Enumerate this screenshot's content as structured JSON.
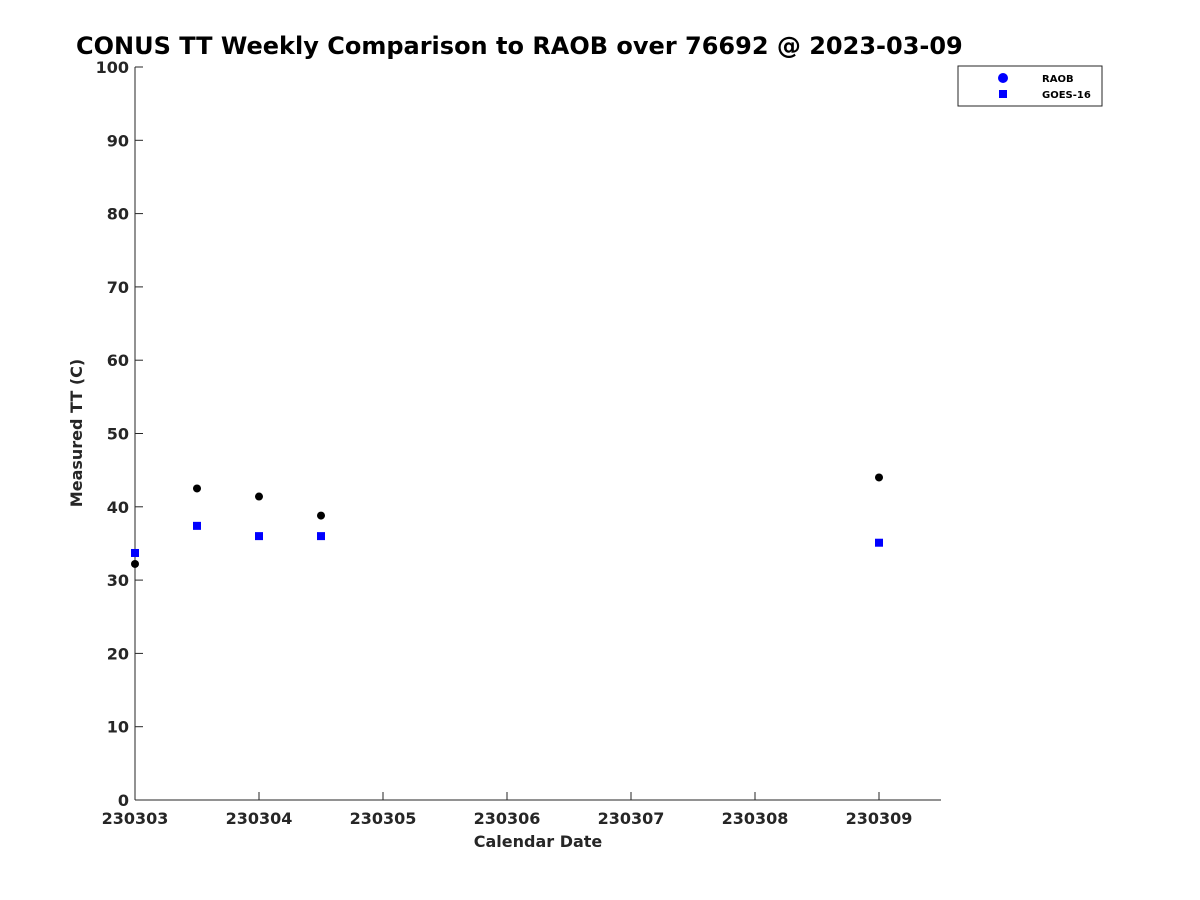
{
  "chart_data": {
    "type": "scatter",
    "title": "CONUS TT Weekly Comparison to RAOB over 76692 @ 2023-03-09",
    "xlabel": "Calendar Date",
    "ylabel": "Measured TT (C)",
    "x_tick_labels": [
      "230303",
      "230304",
      "230305",
      "230306",
      "230307",
      "230308",
      "230309"
    ],
    "y_ticks": [
      0,
      10,
      20,
      30,
      40,
      50,
      60,
      70,
      80,
      90,
      100
    ],
    "xlim": [
      "2023-03-03",
      "2023-03-09 12:00"
    ],
    "ylim": [
      0,
      100
    ],
    "grid": false,
    "legend_position": "top-right",
    "series": [
      {
        "name": "RAOB",
        "marker": "circle",
        "color": "#000000",
        "legend_color": "#0000ff",
        "points": [
          {
            "x": "2023-03-03 00:00",
            "y": 32.2
          },
          {
            "x": "2023-03-03 12:00",
            "y": 42.5
          },
          {
            "x": "2023-03-04 00:00",
            "y": 41.4
          },
          {
            "x": "2023-03-04 12:00",
            "y": 38.8
          },
          {
            "x": "2023-03-09 00:00",
            "y": 44.0
          }
        ]
      },
      {
        "name": "GOES-16",
        "marker": "square",
        "color": "#0000ff",
        "legend_color": "#0000ff",
        "points": [
          {
            "x": "2023-03-03 00:00",
            "y": 33.7
          },
          {
            "x": "2023-03-03 12:00",
            "y": 37.4
          },
          {
            "x": "2023-03-04 00:00",
            "y": 36.0
          },
          {
            "x": "2023-03-04 12:00",
            "y": 36.0
          },
          {
            "x": "2023-03-09 00:00",
            "y": 35.1
          }
        ]
      }
    ]
  }
}
